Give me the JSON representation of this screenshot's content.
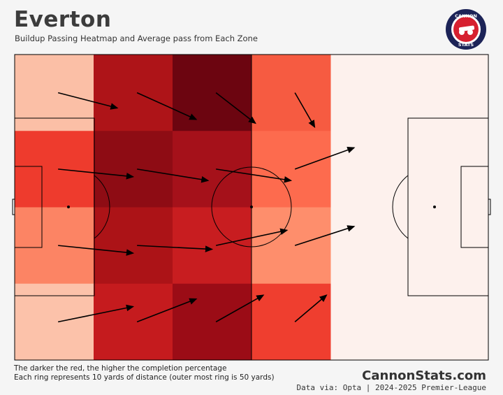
{
  "header": {
    "title": "Everton",
    "subtitle": "Buildup Passing Heatmap and Average pass from Each Zone"
  },
  "logo": {
    "top_text": "CANNON",
    "bottom_text": "STATS",
    "icon": "cannon-icon"
  },
  "footer": {
    "note1": "The darker the red, the higher the completion percentage",
    "note2": "Each ring represents 10 yards of distance (outer most ring is 50 yards)",
    "brand": "CannonStats.com",
    "source": "Data via: Opta | 2024-2025 Premier-League"
  },
  "colors": {
    "background": "#f5f5f5",
    "pitch_empty": "#fdf1ed",
    "pitch_lines": "#000000",
    "arrow": "#000000"
  },
  "chart_data": {
    "type": "heatmap",
    "title": "Everton",
    "subtitle": "Buildup Passing Heatmap and Average pass from Each Zone",
    "note": "The darker the red, the higher the completion percentage",
    "columns": 6,
    "rows": 4,
    "heatmap_colors": [
      [
        "#fbbfa6",
        "#ae1418",
        "#6c0510",
        "#f65b41",
        null,
        null
      ],
      [
        "#ee3b2d",
        "#8e0c14",
        "#a5111a",
        "#fd6b4e",
        null,
        null
      ],
      [
        "#fc8464",
        "#ac1317",
        "#c81d20",
        "#fe8e6c",
        null,
        null
      ],
      [
        "#fcc2aa",
        "#c51b1e",
        "#9b0c16",
        "#ef3e2f",
        null,
        null
      ]
    ],
    "arrows": [
      {
        "col": 0,
        "row": 0,
        "dx": 0.75,
        "dy": 0.2
      },
      {
        "col": 1,
        "row": 0,
        "dx": 0.75,
        "dy": 0.35
      },
      {
        "col": 2,
        "row": 0,
        "dx": 0.5,
        "dy": 0.4
      },
      {
        "col": 3,
        "row": 0,
        "dx": 0.25,
        "dy": 0.45
      },
      {
        "col": 0,
        "row": 1,
        "dx": 0.95,
        "dy": 0.1
      },
      {
        "col": 1,
        "row": 1,
        "dx": 0.9,
        "dy": 0.15
      },
      {
        "col": 2,
        "row": 1,
        "dx": 0.95,
        "dy": 0.15
      },
      {
        "col": 3,
        "row": 1,
        "dx": 0.75,
        "dy": -0.28
      },
      {
        "col": 0,
        "row": 2,
        "dx": 0.95,
        "dy": 0.1
      },
      {
        "col": 1,
        "row": 2,
        "dx": 0.95,
        "dy": 0.05
      },
      {
        "col": 2,
        "row": 2,
        "dx": 0.9,
        "dy": -0.2
      },
      {
        "col": 3,
        "row": 2,
        "dx": 0.75,
        "dy": -0.25
      },
      {
        "col": 0,
        "row": 3,
        "dx": 0.95,
        "dy": -0.2
      },
      {
        "col": 1,
        "row": 3,
        "dx": 0.75,
        "dy": -0.3
      },
      {
        "col": 2,
        "row": 3,
        "dx": 0.6,
        "dy": -0.35
      },
      {
        "col": 3,
        "row": 3,
        "dx": 0.4,
        "dy": -0.35
      }
    ]
  }
}
